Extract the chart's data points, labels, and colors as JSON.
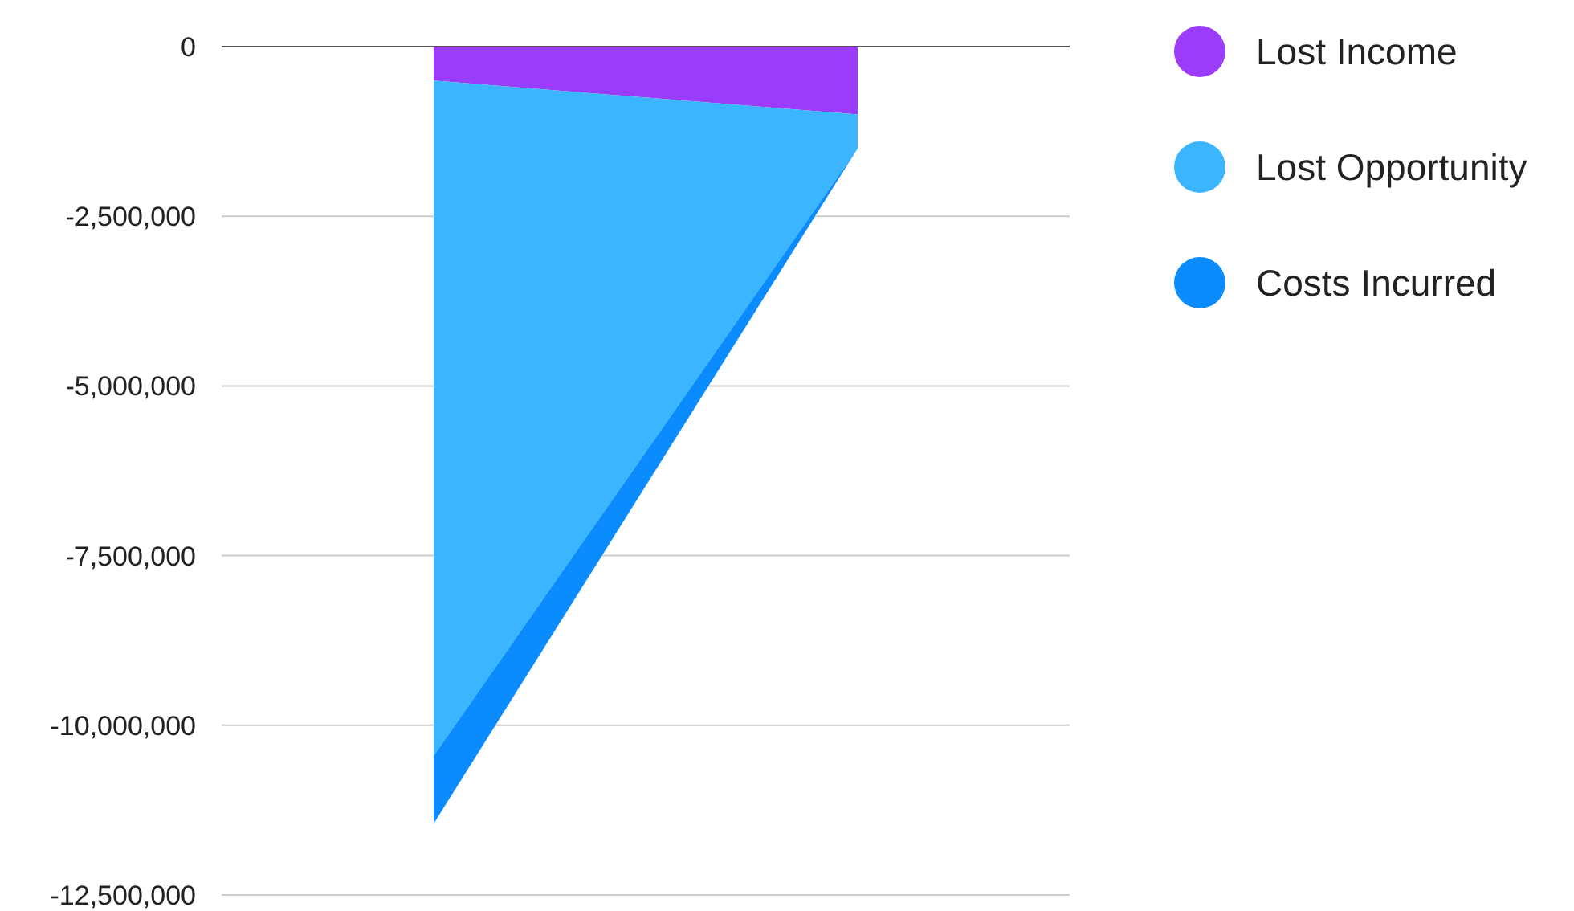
{
  "chart_data": {
    "type": "area",
    "stacked": true,
    "categories": [
      null,
      null
    ],
    "series": [
      {
        "name": "Lost Income",
        "color": "#9b3cfa",
        "values": [
          -500000,
          -1000000
        ]
      },
      {
        "name": "Lost Opportunity",
        "color": "#3bb5ff",
        "values": [
          -9950000,
          -500000
        ]
      },
      {
        "name": "Costs Incurred",
        "color": "#0a8cff",
        "values": [
          -1000000,
          0
        ]
      }
    ],
    "ylim": [
      -12500000,
      0
    ],
    "yticks": [
      {
        "value": 0,
        "label": "0"
      },
      {
        "value": -2500000,
        "label": "-2,500,000"
      },
      {
        "value": -5000000,
        "label": "-5,000,000"
      },
      {
        "value": -7500000,
        "label": "-7,500,000"
      },
      {
        "value": -10000000,
        "label": "-10,000,000"
      },
      {
        "value": -12500000,
        "label": "-12,500,000"
      }
    ],
    "grid": true,
    "legend": "top right"
  }
}
